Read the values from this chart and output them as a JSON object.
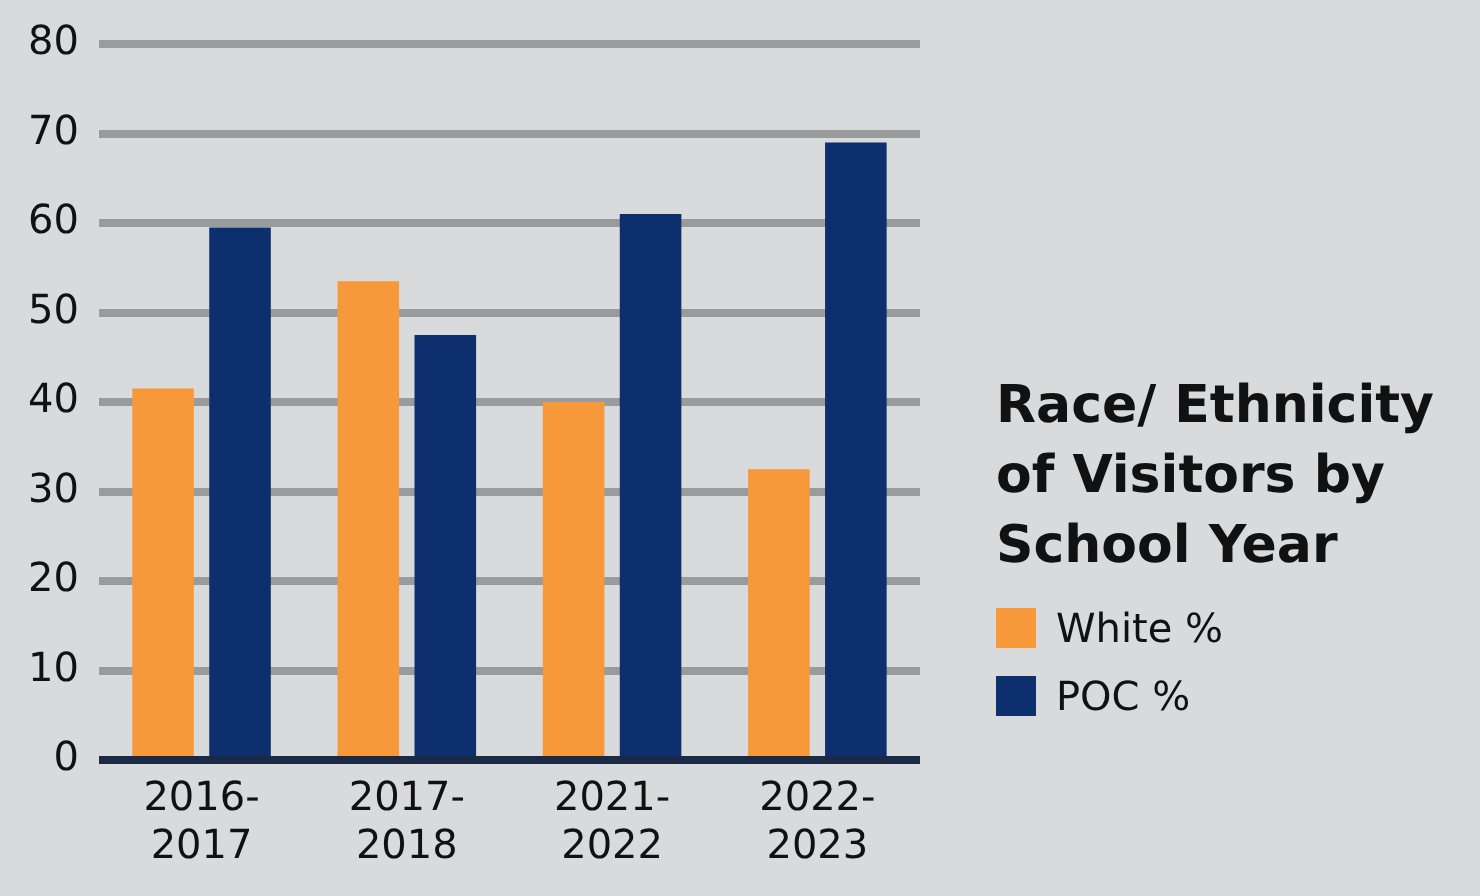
{
  "chart_data": {
    "type": "bar",
    "title": "Race/ Ethnicity of Visitors by School Year",
    "categories": [
      "2016-2017",
      "2017-2018",
      "2021-2022",
      "2022-2023"
    ],
    "series": [
      {
        "name": "White %",
        "color": "#f7993a",
        "values": [
          41.5,
          53.5,
          40,
          32.5
        ]
      },
      {
        "name": "POC %",
        "color": "#0d2f6e",
        "values": [
          59.5,
          47.5,
          61,
          69
        ]
      }
    ],
    "ylim": [
      0,
      80
    ],
    "yticks": [
      0,
      10,
      20,
      30,
      40,
      50,
      60,
      70,
      80
    ],
    "grid": "y",
    "legend": "right"
  }
}
